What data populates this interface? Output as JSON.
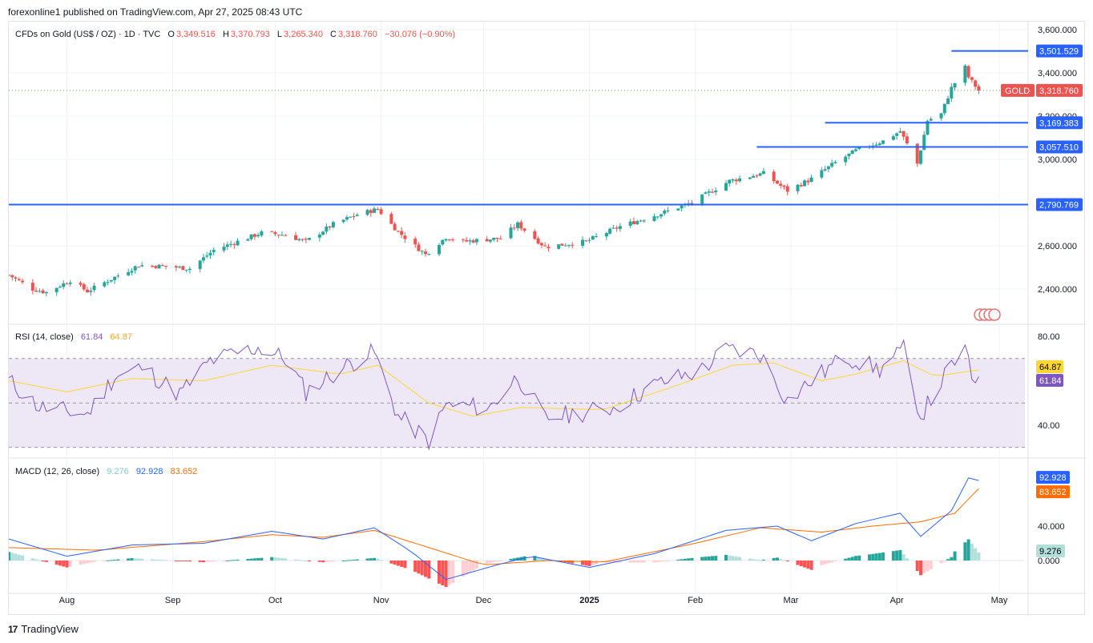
{
  "caption": "forexonline1 published on TradingView.com, Apr 27, 2025 08:43 UTC",
  "footer": {
    "logo_mark": "17",
    "brand": "TradingView"
  },
  "legend": {
    "symbol": "CFDs on Gold (US$ / OZ) · 1D · TVC",
    "open_label": "O",
    "open": "3,349.516",
    "high_label": "H",
    "high": "3,370.793",
    "low_label": "L",
    "low": "3,265.340",
    "close_label": "C",
    "close": "3,318.760",
    "change": "−30.076 (−0.90%)"
  },
  "rsi_legend": {
    "label": "RSI (14, close)",
    "rsi": "61.84",
    "ma": "64.87"
  },
  "macd_legend": {
    "label": "MACD (12, 26, close)",
    "hist": "9.276",
    "macd": "92.928",
    "signal": "83.652"
  },
  "colors": {
    "up": "#26a69a",
    "down": "#ef5350",
    "hline": "#2962ff",
    "rsi_line": "#7e57c2",
    "rsi_ma": "#fdd835",
    "rsi_band": "#ede7f6",
    "macd_line": "#2962ff",
    "signal_line": "#ff6d00",
    "hist_up_strong": "#26a69a",
    "hist_up_weak": "#b2dfdb",
    "hist_down_strong": "#ff5252",
    "hist_down_weak": "#ffcdd2"
  },
  "chart_data": [
    {
      "type": "candlestick",
      "title": "CFDs on Gold (US$ / OZ)",
      "timeframe": "1D",
      "x_ticks": [
        "Aug",
        "Sep",
        "Oct",
        "Nov",
        "Dec",
        "2025",
        "Feb",
        "Mar",
        "Apr",
        "May"
      ],
      "y_ticks": [
        "3,600.000",
        "3,400.000",
        "3,200.000",
        "3,000.000",
        "2,600.000",
        "2,400.000"
      ],
      "ylim": [
        2330,
        3620
      ],
      "last_price": 3318.76,
      "last_price_label": "3,318.760",
      "symbol_tag": "GOLD",
      "horizontal_levels": [
        {
          "value": 3501.529,
          "label": "3,501.529",
          "from": "Apr 17"
        },
        {
          "value": 3169.383,
          "label": "3,169.383",
          "from": "Mar 11"
        },
        {
          "value": 3057.51,
          "label": "3,057.510",
          "from": "Feb 19"
        },
        {
          "value": 2790.769,
          "label": "2,790.769",
          "from": "Jul 15"
        }
      ],
      "close_path": [
        [
          "Jul 15",
          2465
        ],
        [
          "Jul 22",
          2400
        ],
        [
          "Jul 26",
          2385
        ],
        [
          "Aug 2",
          2440
        ],
        [
          "Aug 7",
          2390
        ],
        [
          "Aug 15",
          2455
        ],
        [
          "Aug 22",
          2510
        ],
        [
          "Aug 30",
          2505
        ],
        [
          "Sep 6",
          2495
        ],
        [
          "Sep 13",
          2580
        ],
        [
          "Sep 20",
          2620
        ],
        [
          "Sep 27",
          2660
        ],
        [
          "Oct 4",
          2650
        ],
        [
          "Oct 10",
          2620
        ],
        [
          "Oct 18",
          2700
        ],
        [
          "Oct 25",
          2745
        ],
        [
          "Oct 31",
          2770
        ],
        [
          "Nov 6",
          2665
        ],
        [
          "Nov 14",
          2560
        ],
        [
          "Nov 20",
          2640
        ],
        [
          "Nov 25",
          2620
        ],
        [
          "Dec 6",
          2635
        ],
        [
          "Dec 11",
          2700
        ],
        [
          "Dec 19",
          2595
        ],
        [
          "Dec 31",
          2620
        ],
        [
          "Jan 10",
          2690
        ],
        [
          "Jan 22",
          2750
        ],
        [
          "Jan 31",
          2800
        ],
        [
          "Feb 11",
          2900
        ],
        [
          "Feb 21",
          2935
        ],
        [
          "Feb 28",
          2855
        ],
        [
          "Mar 7",
          2910
        ],
        [
          "Mar 14",
          2985
        ],
        [
          "Mar 20",
          3040
        ],
        [
          "Mar 28",
          3085
        ],
        [
          "Apr 2",
          3130
        ],
        [
          "Apr 7",
          2980
        ],
        [
          "Apr 10",
          3180
        ],
        [
          "Apr 14",
          3210
        ],
        [
          "Apr 17",
          3330
        ],
        [
          "Apr 21",
          3425
        ],
        [
          "Apr 22",
          3380
        ],
        [
          "Apr 25",
          3318.76
        ]
      ]
    },
    {
      "type": "line",
      "title": "RSI (14, close)",
      "y_ticks": [
        "80.00",
        "40.00"
      ],
      "ylim": [
        28,
        85
      ],
      "bands": [
        70,
        50,
        30
      ],
      "series": [
        {
          "name": "RSI",
          "current": 61.84,
          "current_label": "61.84",
          "points": [
            [
              "Jul 15",
              60
            ],
            [
              "Jul 24",
              48
            ],
            [
              "Aug 7",
              45
            ],
            [
              "Aug 15",
              62
            ],
            [
              "Aug 23",
              66
            ],
            [
              "Sep 3",
              54
            ],
            [
              "Sep 12",
              69
            ],
            [
              "Sep 26",
              75
            ],
            [
              "Oct 4",
              70
            ],
            [
              "Oct 10",
              55
            ],
            [
              "Oct 22",
              67
            ],
            [
              "Oct 30",
              73
            ],
            [
              "Nov 6",
              44
            ],
            [
              "Nov 15",
              33
            ],
            [
              "Nov 20",
              49
            ],
            [
              "Dec 3",
              48
            ],
            [
              "Dec 11",
              62
            ],
            [
              "Dec 19",
              43
            ],
            [
              "Jan 8",
              48
            ],
            [
              "Jan 20",
              58
            ],
            [
              "Feb 3",
              65
            ],
            [
              "Feb 10",
              74
            ],
            [
              "Feb 20",
              72
            ],
            [
              "Feb 28",
              51
            ],
            [
              "Mar 7",
              60
            ],
            [
              "Mar 17",
              71
            ],
            [
              "Mar 27",
              65
            ],
            [
              "Apr 3",
              74
            ],
            [
              "Apr 8",
              44
            ],
            [
              "Apr 17",
              67
            ],
            [
              "Apr 21",
              74
            ],
            [
              "Apr 23",
              60
            ],
            [
              "Apr 25",
              61.84
            ]
          ]
        },
        {
          "name": "RSI MA",
          "current": 64.87,
          "current_label": "64.87",
          "points": [
            [
              "Jul 15",
              60
            ],
            [
              "Aug 1",
              55
            ],
            [
              "Aug 20",
              61
            ],
            [
              "Sep 10",
              60
            ],
            [
              "Sep 30",
              67
            ],
            [
              "Oct 20",
              63
            ],
            [
              "Oct 31",
              67
            ],
            [
              "Nov 15",
              50
            ],
            [
              "Nov 28",
              44
            ],
            [
              "Dec 12",
              48
            ],
            [
              "Jan 5",
              47
            ],
            [
              "Jan 25",
              57
            ],
            [
              "Feb 12",
              67
            ],
            [
              "Feb 24",
              68
            ],
            [
              "Mar 10",
              60
            ],
            [
              "Mar 20",
              63
            ],
            [
              "Apr 3",
              69
            ],
            [
              "Apr 12",
              62
            ],
            [
              "Apr 25",
              64.87
            ]
          ]
        }
      ]
    },
    {
      "type": "line",
      "title": "MACD (12, 26, close)",
      "y_ticks": [
        "40.000",
        "0.000"
      ],
      "ylim": [
        -60,
        120
      ],
      "series": [
        {
          "name": "MACD",
          "current": 92.928,
          "current_label": "92.928",
          "points": [
            [
              "Jul 15",
              25
            ],
            [
              "Aug 1",
              5
            ],
            [
              "Aug 20",
              18
            ],
            [
              "Sep 10",
              20
            ],
            [
              "Sep 30",
              34
            ],
            [
              "Oct 15",
              25
            ],
            [
              "Oct 30",
              38
            ],
            [
              "Nov 10",
              10
            ],
            [
              "Nov 20",
              -22
            ],
            [
              "Dec 5",
              -5
            ],
            [
              "Dec 15",
              5
            ],
            [
              "Jan 1",
              -8
            ],
            [
              "Jan 20",
              8
            ],
            [
              "Feb 10",
              35
            ],
            [
              "Feb 25",
              40
            ],
            [
              "Mar 7",
              23
            ],
            [
              "Mar 20",
              43
            ],
            [
              "Apr 2",
              55
            ],
            [
              "Apr 8",
              28
            ],
            [
              "Apr 17",
              58
            ],
            [
              "Apr 22",
              96
            ],
            [
              "Apr 25",
              92.928
            ]
          ]
        },
        {
          "name": "Signal",
          "current": 83.652,
          "current_label": "83.652",
          "points": [
            [
              "Jul 15",
              15
            ],
            [
              "Aug 10",
              12
            ],
            [
              "Sep 10",
              22
            ],
            [
              "Sep 30",
              30
            ],
            [
              "Oct 15",
              27
            ],
            [
              "Oct 30",
              35
            ],
            [
              "Nov 15",
              15
            ],
            [
              "Dec 1",
              -5
            ],
            [
              "Dec 20",
              0
            ],
            [
              "Jan 5",
              -2
            ],
            [
              "Feb 1",
              20
            ],
            [
              "Feb 20",
              38
            ],
            [
              "Mar 10",
              33
            ],
            [
              "Mar 25",
              40
            ],
            [
              "Apr 8",
              45
            ],
            [
              "Apr 18",
              55
            ],
            [
              "Apr 25",
              83.652
            ]
          ]
        }
      ],
      "histogram": {
        "current": 9.276,
        "current_label": "9.276"
      }
    }
  ]
}
